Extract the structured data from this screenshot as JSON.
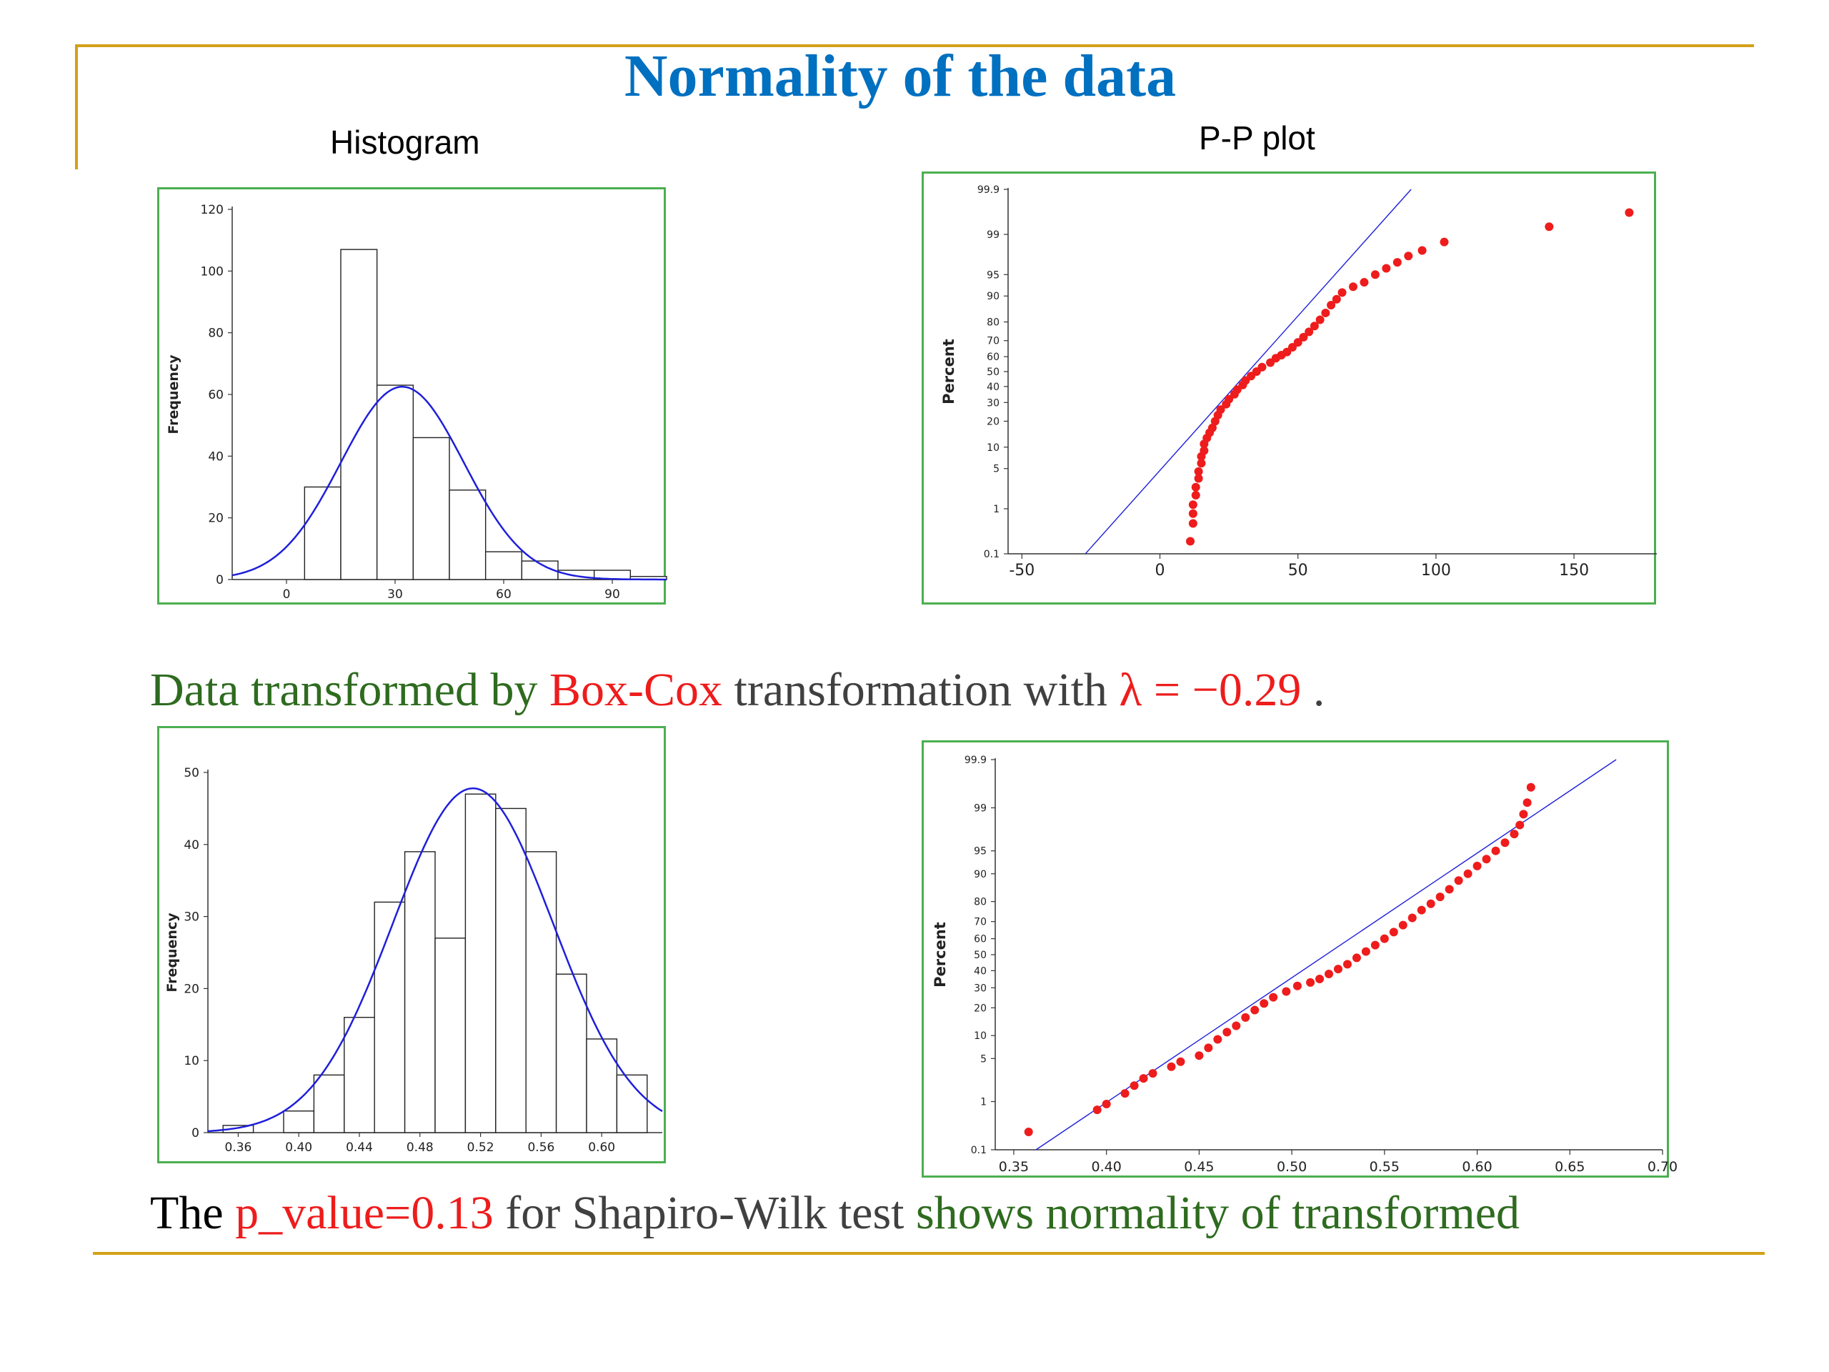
{
  "slide": {
    "title": "Normality of the data",
    "caption_left": "Histogram",
    "caption_right": "P-P plot",
    "middle_line": {
      "part1": "Data transformed by ",
      "part2": "Box-Cox",
      "part3": " transformation with ",
      "part4": "λ = −0.29",
      "part5": " ."
    },
    "bottom_line": {
      "part1": "The ",
      "part2": "p_value=0.13",
      "part3": " for Shapiro-Wilk test ",
      "part4": "shows normality of transformed"
    },
    "colors": {
      "accent_rule": "#D4A017",
      "title": "#0070C0",
      "green": "#2E6B1F",
      "red": "#EE1C1C",
      "curve": "#1F1FDB",
      "points": "#EE1C1C",
      "frame": "#4CAF50"
    }
  },
  "chart_data": [
    {
      "id": "hist-raw",
      "type": "bar",
      "ylabel": "Frequency",
      "xlim": [
        -15,
        105
      ],
      "ylim": [
        0,
        120
      ],
      "xticks": [
        0,
        30,
        60,
        90
      ],
      "xtick_labels": [
        "0",
        "30",
        "60",
        "90"
      ],
      "yticks": [
        0,
        20,
        40,
        60,
        80,
        100,
        120
      ],
      "ytick_labels": [
        "0",
        "20",
        "40",
        "60",
        "80",
        "100",
        "120"
      ],
      "bin_edges": [
        5,
        15,
        25,
        35,
        45,
        55,
        65,
        75,
        85,
        95,
        105
      ],
      "values": [
        30,
        107,
        63,
        46,
        29,
        9,
        6,
        3,
        3,
        1
      ],
      "fit_curve": {
        "type": "normal",
        "mean": 32,
        "peak": 62.5,
        "sd": 17
      }
    },
    {
      "id": "pp-raw",
      "type": "scatter",
      "ylabel": "Percent",
      "xlim": [
        -55,
        180
      ],
      "xticks": [
        -50,
        0,
        50,
        100,
        150
      ],
      "xtick_labels": [
        "-50",
        "0",
        "50",
        "100",
        "150"
      ],
      "yticks": [
        0.1,
        1,
        5,
        10,
        20,
        30,
        40,
        50,
        60,
        70,
        80,
        90,
        95,
        99,
        99.9
      ],
      "ytick_labels": [
        "0.1",
        "1",
        "5",
        "10",
        "20",
        "30",
        "40",
        "50",
        "60",
        "70",
        "80",
        "90",
        "95",
        "99",
        "99.9"
      ],
      "reference_line": [
        [
          -27,
          0.1
        ],
        [
          91,
          99.9
        ]
      ],
      "points": [
        [
          11,
          0.2
        ],
        [
          12,
          0.5
        ],
        [
          12,
          0.8
        ],
        [
          12,
          1.2
        ],
        [
          13,
          1.8
        ],
        [
          13,
          2.5
        ],
        [
          14,
          3.5
        ],
        [
          14,
          4.5
        ],
        [
          15,
          6
        ],
        [
          15,
          7.5
        ],
        [
          16,
          9
        ],
        [
          16,
          11
        ],
        [
          17,
          13
        ],
        [
          18,
          15
        ],
        [
          19,
          17
        ],
        [
          20,
          20
        ],
        [
          21,
          23
        ],
        [
          22,
          26
        ],
        [
          24,
          29
        ],
        [
          25,
          32
        ],
        [
          27,
          35
        ],
        [
          28,
          38
        ],
        [
          30,
          41
        ],
        [
          31,
          44
        ],
        [
          33,
          47
        ],
        [
          35,
          50
        ],
        [
          37,
          53
        ],
        [
          40,
          56
        ],
        [
          42,
          59
        ],
        [
          44,
          61
        ],
        [
          46,
          63
        ],
        [
          48,
          66
        ],
        [
          50,
          69
        ],
        [
          52,
          72
        ],
        [
          54,
          75
        ],
        [
          56,
          78
        ],
        [
          58,
          81
        ],
        [
          60,
          84
        ],
        [
          62,
          87
        ],
        [
          64,
          89
        ],
        [
          66,
          91
        ],
        [
          70,
          92.5
        ],
        [
          74,
          93.5
        ],
        [
          78,
          95
        ],
        [
          82,
          96
        ],
        [
          86,
          96.8
        ],
        [
          90,
          97.5
        ],
        [
          95,
          98
        ],
        [
          103,
          98.6
        ],
        [
          141,
          99.3
        ],
        [
          170,
          99.65
        ]
      ]
    },
    {
      "id": "hist-boxcox",
      "type": "bar",
      "ylabel": "Frequency",
      "xlim": [
        0.34,
        0.64
      ],
      "ylim": [
        0,
        50
      ],
      "xticks": [
        0.36,
        0.4,
        0.44,
        0.48,
        0.52,
        0.56,
        0.6
      ],
      "xtick_labels": [
        "0.36",
        "0.40",
        "0.44",
        "0.48",
        "0.52",
        "0.56",
        "0.60"
      ],
      "yticks": [
        0,
        10,
        20,
        30,
        40,
        50
      ],
      "ytick_labels": [
        "0",
        "10",
        "20",
        "30",
        "40",
        "50"
      ],
      "bin_edges": [
        0.35,
        0.37,
        0.39,
        0.41,
        0.43,
        0.45,
        0.47,
        0.49,
        0.51,
        0.53,
        0.55,
        0.57,
        0.59,
        0.61,
        0.63
      ],
      "values": [
        1,
        0,
        3,
        8,
        16,
        32,
        39,
        27,
        47,
        45,
        39,
        22,
        13,
        8
      ],
      "fit_curve": {
        "type": "normal",
        "mean": 0.515,
        "peak": 47.8,
        "sd": 0.053
      }
    },
    {
      "id": "pp-boxcox",
      "type": "scatter",
      "ylabel": "Percent",
      "xlim": [
        0.34,
        0.7
      ],
      "xticks": [
        0.35,
        0.4,
        0.45,
        0.5,
        0.55,
        0.6,
        0.65,
        0.7
      ],
      "xtick_labels": [
        "0.35",
        "0.40",
        "0.45",
        "0.50",
        "0.55",
        "0.60",
        "0.65",
        "0.70"
      ],
      "yticks": [
        0.1,
        1,
        5,
        10,
        20,
        30,
        40,
        50,
        60,
        70,
        80,
        90,
        95,
        99,
        99.9
      ],
      "ytick_labels": [
        "0.1",
        "1",
        "5",
        "10",
        "20",
        "30",
        "40",
        "50",
        "60",
        "70",
        "80",
        "90",
        "95",
        "99",
        "99.9"
      ],
      "reference_line": [
        [
          0.362,
          0.1
        ],
        [
          0.675,
          99.9
        ]
      ],
      "points": [
        [
          0.358,
          0.25
        ],
        [
          0.395,
          0.7
        ],
        [
          0.4,
          0.9
        ],
        [
          0.41,
          1.4
        ],
        [
          0.415,
          1.9
        ],
        [
          0.42,
          2.5
        ],
        [
          0.425,
          3
        ],
        [
          0.435,
          3.8
        ],
        [
          0.44,
          4.5
        ],
        [
          0.45,
          5.5
        ],
        [
          0.455,
          7
        ],
        [
          0.46,
          9
        ],
        [
          0.465,
          11
        ],
        [
          0.47,
          13
        ],
        [
          0.475,
          16
        ],
        [
          0.48,
          19
        ],
        [
          0.485,
          22
        ],
        [
          0.49,
          25
        ],
        [
          0.497,
          28
        ],
        [
          0.503,
          31
        ],
        [
          0.51,
          33
        ],
        [
          0.515,
          35
        ],
        [
          0.52,
          38
        ],
        [
          0.525,
          41
        ],
        [
          0.53,
          44
        ],
        [
          0.535,
          48
        ],
        [
          0.54,
          52
        ],
        [
          0.545,
          56
        ],
        [
          0.55,
          60
        ],
        [
          0.555,
          64
        ],
        [
          0.56,
          68
        ],
        [
          0.565,
          72
        ],
        [
          0.57,
          76
        ],
        [
          0.575,
          79
        ],
        [
          0.58,
          82
        ],
        [
          0.585,
          85
        ],
        [
          0.59,
          88
        ],
        [
          0.595,
          90
        ],
        [
          0.6,
          92
        ],
        [
          0.605,
          93.5
        ],
        [
          0.61,
          95
        ],
        [
          0.615,
          96.2
        ],
        [
          0.62,
          97.2
        ],
        [
          0.623,
          98
        ],
        [
          0.625,
          98.7
        ],
        [
          0.627,
          99.2
        ],
        [
          0.629,
          99.6
        ]
      ]
    }
  ]
}
